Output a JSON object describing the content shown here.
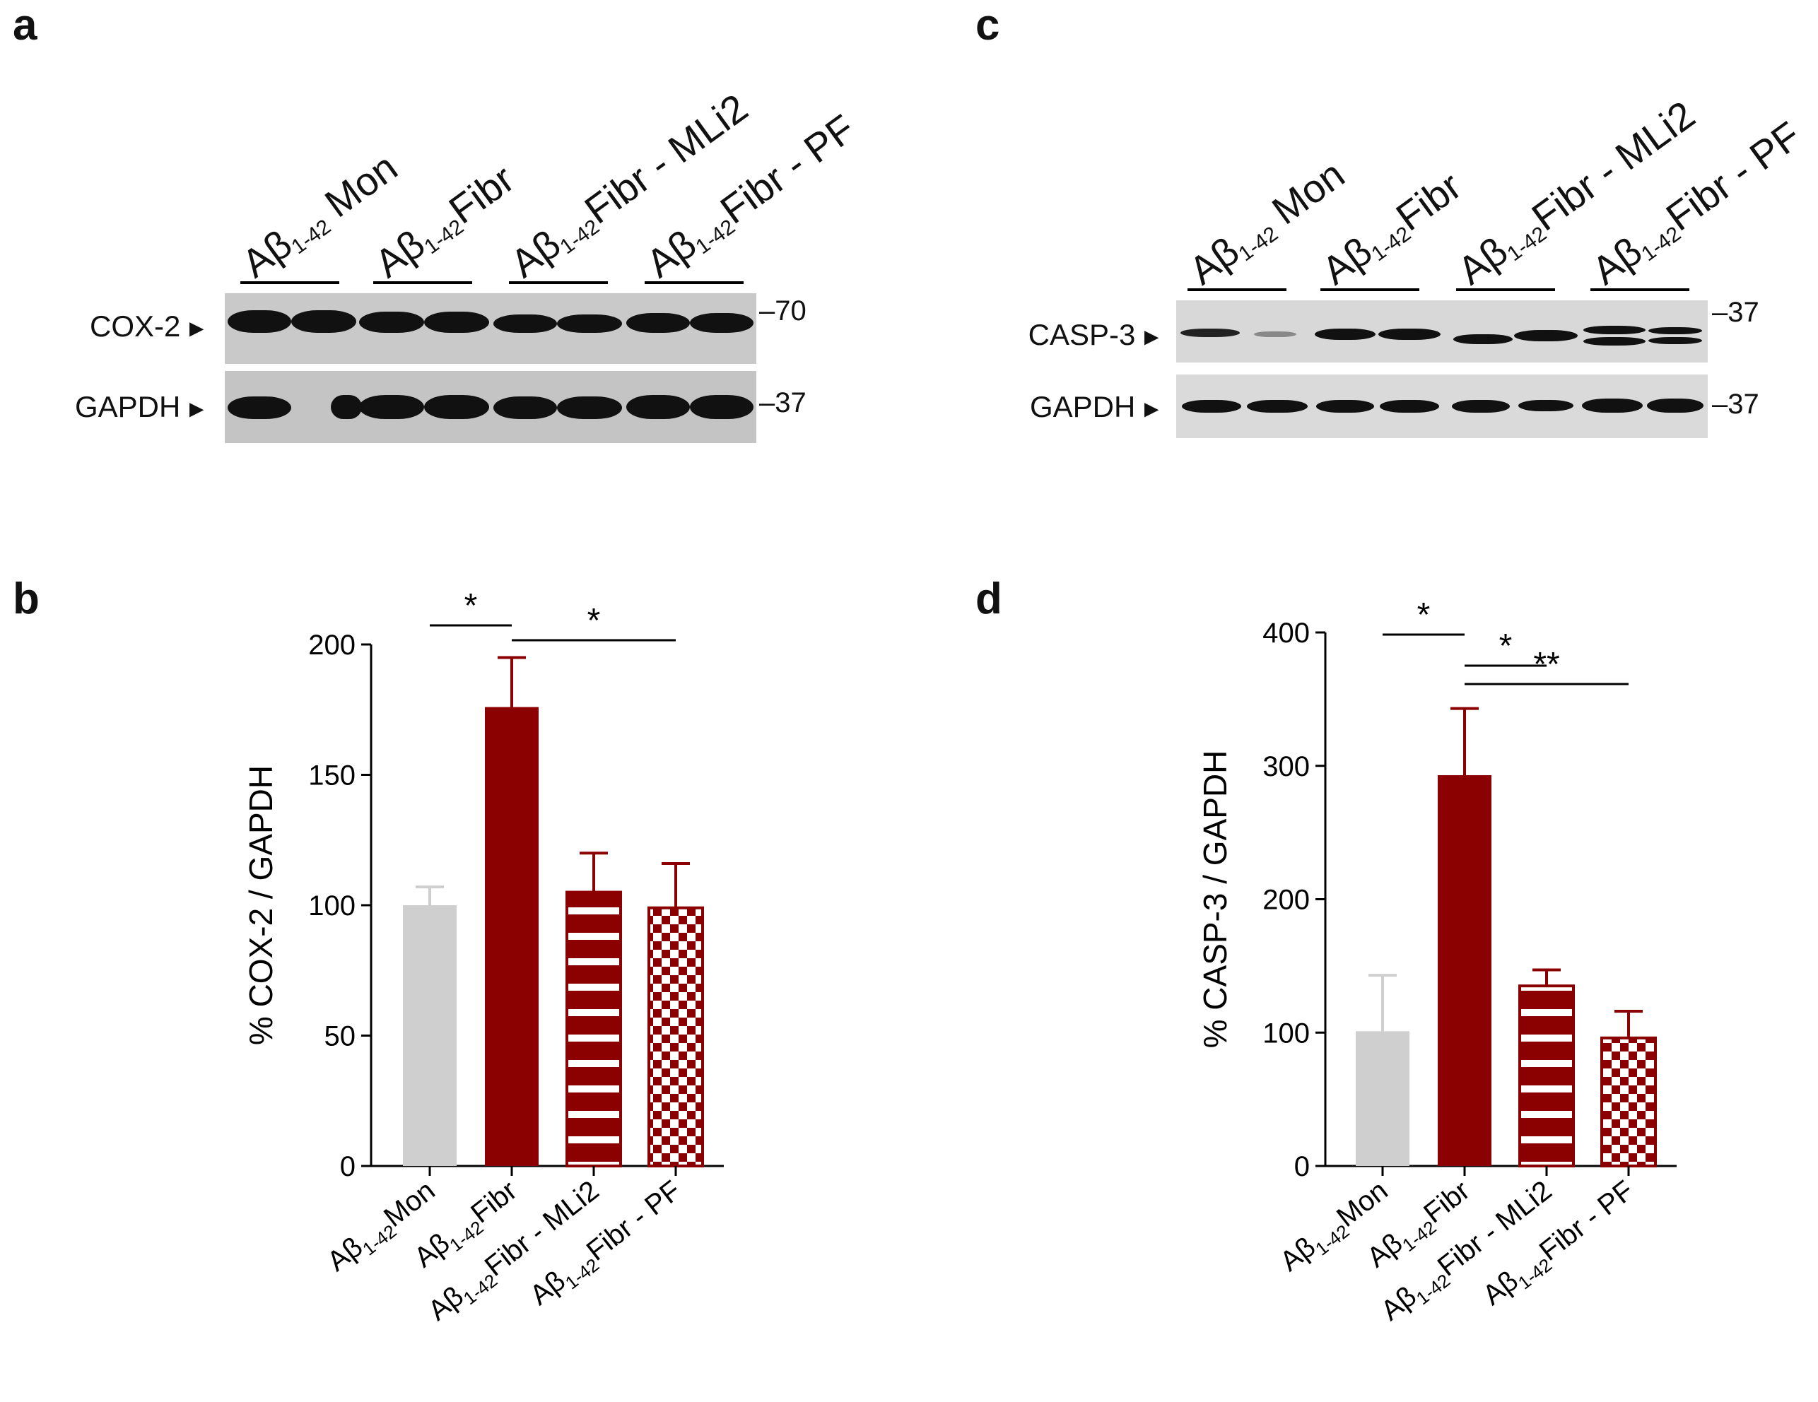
{
  "panels": {
    "a": "a",
    "b": "b",
    "c": "c",
    "d": "d"
  },
  "lanes": [
    {
      "base": "Aβ",
      "sub": "1-42",
      "suffix": " Mon"
    },
    {
      "base": "Aβ",
      "sub": "1-42",
      "suffix": "Fibr"
    },
    {
      "base": "Aβ",
      "sub": "1-42",
      "suffix": "Fibr - MLi2"
    },
    {
      "base": "Aβ",
      "sub": "1-42",
      "suffix": "Fibr - PF"
    }
  ],
  "blots": {
    "a": {
      "top_label": "COX-2",
      "top_mw": "70",
      "bottom_label": "GAPDH",
      "bottom_mw": "37"
    },
    "c": {
      "top_label": "CASP-3",
      "top_mw": "37",
      "bottom_label": "GAPDH",
      "bottom_mw": "37"
    }
  },
  "arrow_glyph": "►",
  "colors": {
    "control": "#cfcfcf",
    "treated": "#8b0000",
    "axis": "#000000"
  },
  "chart_data": [
    {
      "panel": "b",
      "type": "bar",
      "categories": [
        "Aβ1-42Mon",
        "Aβ1-42Fibr",
        "Aβ1-42Fibr - MLi2",
        "Aβ1-42Fibr - PF"
      ],
      "category_parts": [
        {
          "base": "Aβ",
          "sub": "1-42",
          "suffix": "Mon"
        },
        {
          "base": "Aβ",
          "sub": "1-42",
          "suffix": "Fibr"
        },
        {
          "base": "Aβ",
          "sub": "1-42",
          "suffix": "Fibr - MLi2"
        },
        {
          "base": "Aβ",
          "sub": "1-42",
          "suffix": "Fibr - PF"
        }
      ],
      "values": [
        100,
        176,
        105,
        99
      ],
      "errors": [
        7,
        19,
        15,
        17
      ],
      "patterns": [
        "solid-grey",
        "solid",
        "stripes",
        "checker"
      ],
      "ylabel": "% COX-2 / GAPDH",
      "ylim": [
        0,
        200
      ],
      "yticks": [
        0,
        50,
        100,
        150,
        200
      ],
      "significance": [
        {
          "from": 0,
          "to": 1,
          "label": "*"
        },
        {
          "from": 1,
          "to": 3,
          "label": "*"
        }
      ]
    },
    {
      "panel": "d",
      "type": "bar",
      "categories": [
        "Aβ1-42Mon",
        "Aβ1-42Fibr",
        "Aβ1-42Fibr - MLi2",
        "Aβ1-42Fibr - PF"
      ],
      "category_parts": [
        {
          "base": "Aβ",
          "sub": "1-42",
          "suffix": "Mon"
        },
        {
          "base": "Aβ",
          "sub": "1-42",
          "suffix": "Fibr"
        },
        {
          "base": "Aβ",
          "sub": "1-42",
          "suffix": "Fibr - MLi2"
        },
        {
          "base": "Aβ",
          "sub": "1-42",
          "suffix": "Fibr - PF"
        }
      ],
      "values": [
        101,
        293,
        135,
        96
      ],
      "errors": [
        42,
        50,
        12,
        20
      ],
      "patterns": [
        "solid-grey",
        "solid",
        "stripes",
        "checker"
      ],
      "ylabel": "% CASP-3 / GAPDH",
      "ylim": [
        0,
        400
      ],
      "yticks": [
        0,
        100,
        200,
        300,
        400
      ],
      "significance": [
        {
          "from": 0,
          "to": 1,
          "label": "*"
        },
        {
          "from": 1,
          "to": 2,
          "label": "*"
        },
        {
          "from": 1,
          "to": 3,
          "label": "**"
        }
      ]
    }
  ]
}
